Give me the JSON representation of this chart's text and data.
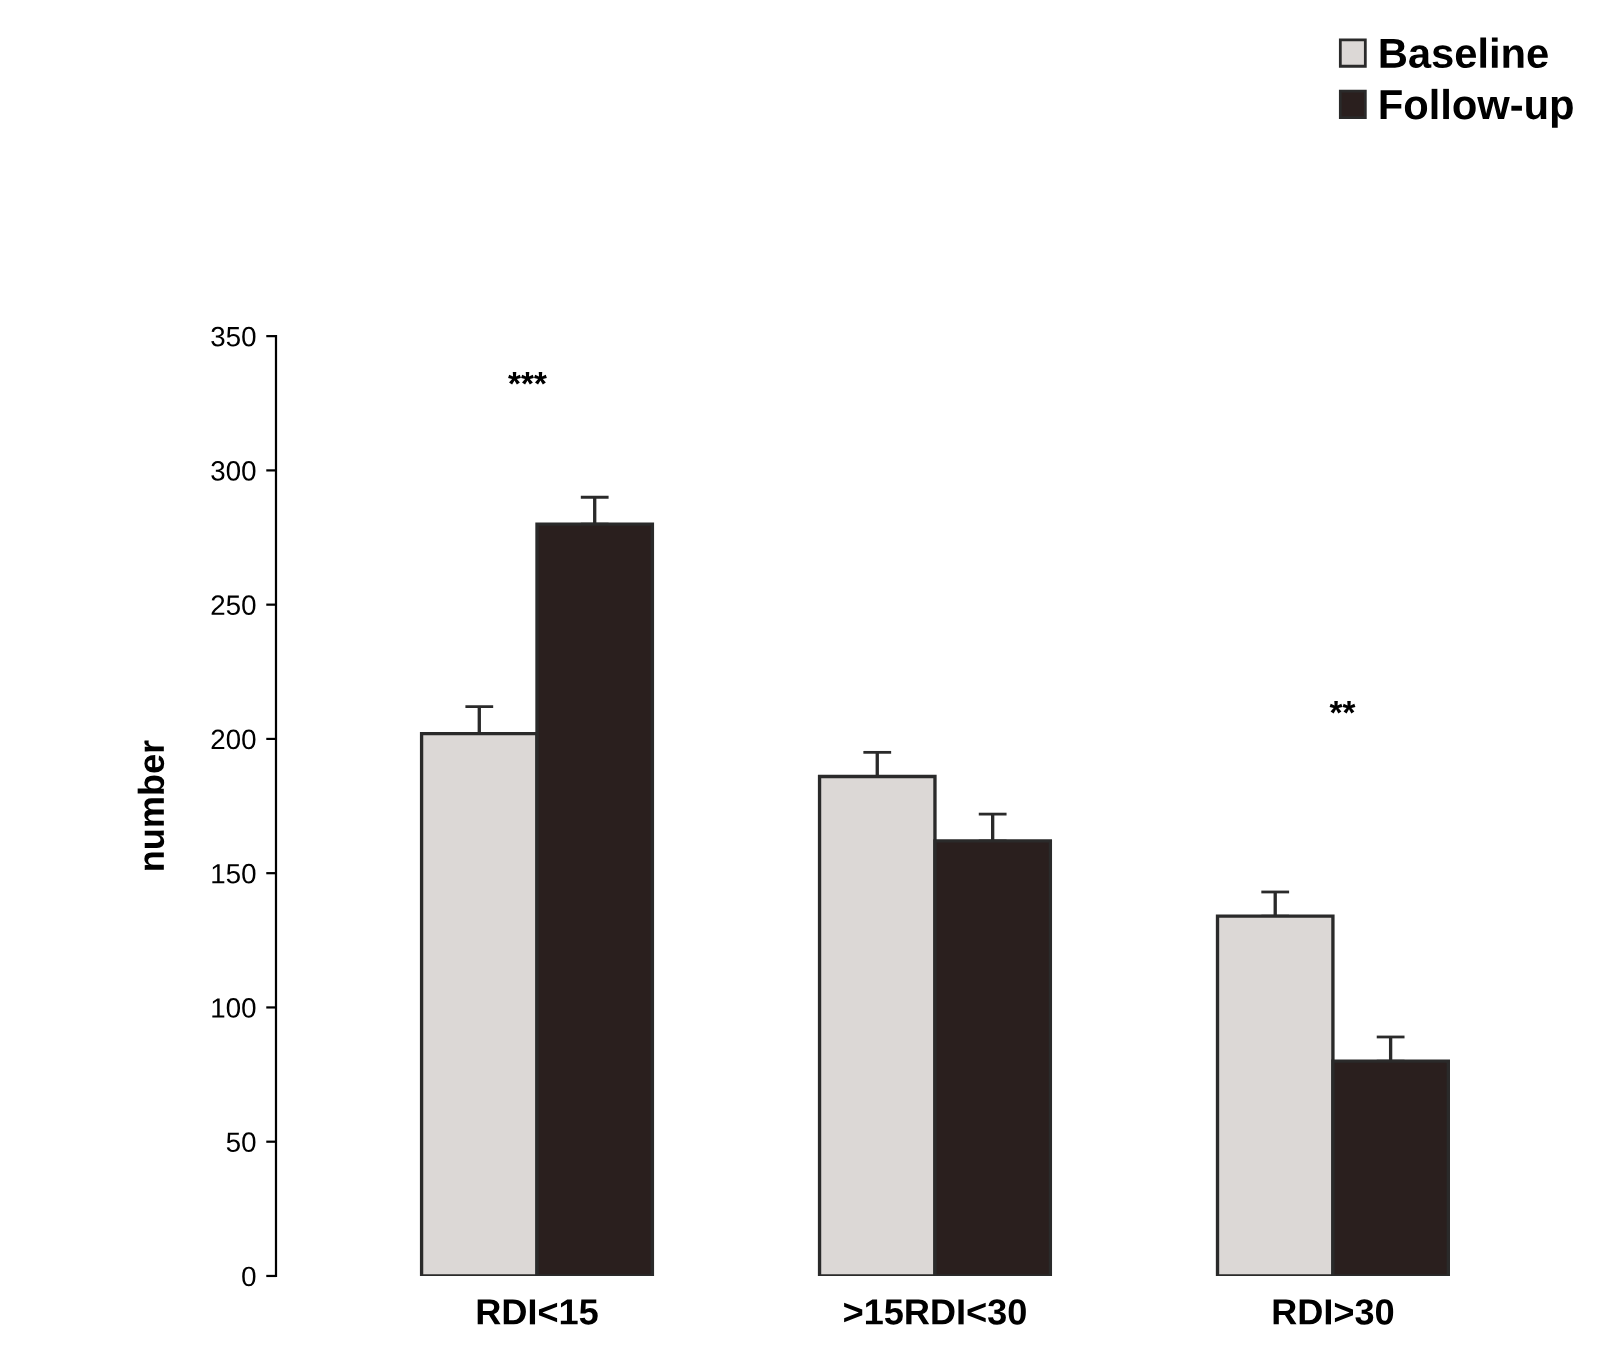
{
  "chart_data": {
    "type": "bar",
    "ylabel": "number",
    "categories": [
      "RDI<15",
      ">15RDI<30",
      "RDI>30"
    ],
    "series": [
      {
        "name": "Baseline",
        "color": "#dcd8d6",
        "values": [
          202,
          186,
          134
        ],
        "errors": [
          [
            202,
            212
          ],
          [
            186,
            195
          ],
          [
            134,
            143
          ]
        ]
      },
      {
        "name": "Follow-up",
        "color": "#2a1f1e",
        "values": [
          280,
          162,
          80
        ],
        "errors": [
          [
            280,
            290
          ],
          [
            162,
            172
          ],
          [
            80,
            89
          ]
        ]
      }
    ],
    "ylim": [
      0,
      350
    ],
    "yticks": [
      0,
      50,
      100,
      150,
      200,
      250,
      300,
      350
    ],
    "grid": false,
    "legend": "top right",
    "annotations": [
      "***",
      "**"
    ]
  }
}
